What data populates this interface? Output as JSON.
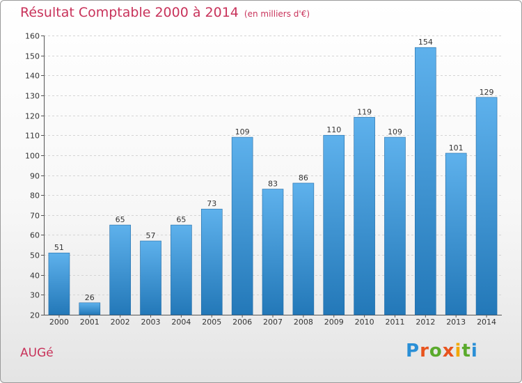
{
  "chart_data": {
    "type": "bar",
    "title": "Résultat Comptable 2000 à 2014",
    "subtitle": "(en milliers d'€)",
    "xlabel": "",
    "ylabel": "",
    "categories": [
      "2000",
      "2001",
      "2002",
      "2003",
      "2004",
      "2005",
      "2006",
      "2007",
      "2008",
      "2009",
      "2010",
      "2011",
      "2012",
      "2013",
      "2014"
    ],
    "values": [
      51,
      26,
      65,
      57,
      65,
      73,
      109,
      83,
      86,
      110,
      119,
      109,
      154,
      101,
      129
    ],
    "ylim": [
      20,
      160
    ],
    "yticks": [
      20,
      30,
      40,
      50,
      60,
      70,
      80,
      90,
      100,
      110,
      120,
      130,
      140,
      150,
      160
    ],
    "grid": true
  },
  "place_name": "AUGé",
  "logo_text": "Proxiti",
  "colors": {
    "title": "#c8325a",
    "bar_top": "#5eb1ec",
    "bar_bottom": "#2378b8",
    "grid": "#d4d4d4"
  }
}
